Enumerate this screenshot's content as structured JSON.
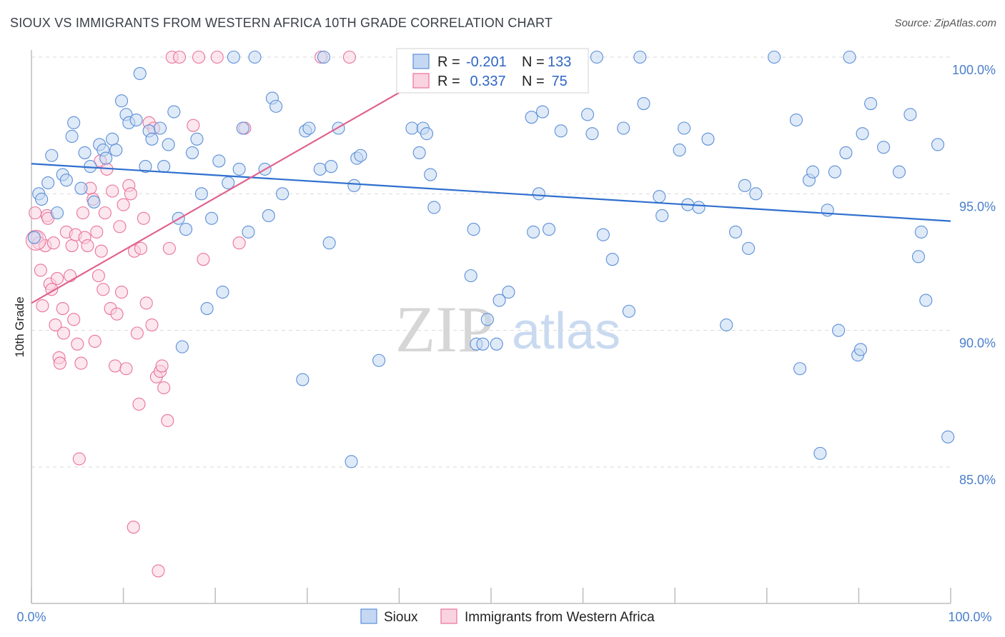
{
  "title": "SIOUX VS IMMIGRANTS FROM WESTERN AFRICA 10TH GRADE CORRELATION CHART",
  "source": "Source: ZipAtlas.com",
  "watermark": {
    "zip": "ZIP",
    "atlas": "atlas"
  },
  "legend_top": [
    {
      "r_label": "R = ",
      "r_value": "-0.201",
      "n_label": "N = ",
      "n_value": "133"
    },
    {
      "r_label": "R = ",
      "r_value": " 0.337",
      "n_label": "N = ",
      "n_value": " 75"
    }
  ],
  "colors": {
    "sioux": "#5b8fd8",
    "sioux_fill": "#c5d8f3",
    "wa": "#e9739a",
    "wa_fill": "#f9d3e0",
    "sioux_line": "#2f6fcf",
    "wa_line": "#e0628e",
    "grid": "#d9d9d9",
    "axis_text": "#4a7fcb"
  },
  "chart_data": {
    "type": "scatter",
    "xlabel": "",
    "ylabel": "10th Grade",
    "xlim": [
      0,
      100
    ],
    "ylim": [
      80.5,
      100.8
    ],
    "x_tick_labels": [
      "0.0%",
      "100.0%"
    ],
    "y_ticks": [
      85,
      90,
      95,
      100
    ],
    "y_tick_labels": [
      "85.0%",
      "90.0%",
      "95.0%",
      "100.0%"
    ],
    "legend": [
      "Sioux",
      "Immigrants from Western Africa"
    ],
    "series": [
      {
        "name": "Sioux",
        "R": -0.201,
        "N": 133,
        "trend": {
          "x": [
            0,
            100
          ],
          "y": [
            96.1,
            94.0
          ]
        },
        "points": [
          [
            0.3,
            93.4
          ],
          [
            0.8,
            95.0
          ],
          [
            1.1,
            94.8
          ],
          [
            1.8,
            95.4
          ],
          [
            2.2,
            96.4
          ],
          [
            2.8,
            94.3
          ],
          [
            3.4,
            95.7
          ],
          [
            3.8,
            95.5
          ],
          [
            4.4,
            97.1
          ],
          [
            4.6,
            97.6
          ],
          [
            5.4,
            95.2
          ],
          [
            5.8,
            96.5
          ],
          [
            6.4,
            96.0
          ],
          [
            6.8,
            94.7
          ],
          [
            7.4,
            96.8
          ],
          [
            7.8,
            96.6
          ],
          [
            8.1,
            96.3
          ],
          [
            8.8,
            97.0
          ],
          [
            9.2,
            96.6
          ],
          [
            9.8,
            98.4
          ],
          [
            10.3,
            97.9
          ],
          [
            10.6,
            97.6
          ],
          [
            11.4,
            97.7
          ],
          [
            11.8,
            99.4
          ],
          [
            12.4,
            96.0
          ],
          [
            12.8,
            97.3
          ],
          [
            13.1,
            97.0
          ],
          [
            14.0,
            97.4
          ],
          [
            14.4,
            96.0
          ],
          [
            14.9,
            96.8
          ],
          [
            15.5,
            98.0
          ],
          [
            16.0,
            94.1
          ],
          [
            16.4,
            89.4
          ],
          [
            16.8,
            93.7
          ],
          [
            17.5,
            96.5
          ],
          [
            18.0,
            97.0
          ],
          [
            18.5,
            95.0
          ],
          [
            19.1,
            90.8
          ],
          [
            19.6,
            94.1
          ],
          [
            20.4,
            96.2
          ],
          [
            20.8,
            91.4
          ],
          [
            21.4,
            95.4
          ],
          [
            22.0,
            100.0
          ],
          [
            22.6,
            95.9
          ],
          [
            23.0,
            97.4
          ],
          [
            23.6,
            93.6
          ],
          [
            24.3,
            100.0
          ],
          [
            25.4,
            95.9
          ],
          [
            25.8,
            94.2
          ],
          [
            26.2,
            98.5
          ],
          [
            26.6,
            98.2
          ],
          [
            27.3,
            95.0
          ],
          [
            29.5,
            88.2
          ],
          [
            29.8,
            97.3
          ],
          [
            30.2,
            97.4
          ],
          [
            31.4,
            95.9
          ],
          [
            31.8,
            100.0
          ],
          [
            32.4,
            93.2
          ],
          [
            32.6,
            96.0
          ],
          [
            33.4,
            97.4
          ],
          [
            34.8,
            85.2
          ],
          [
            35.1,
            95.3
          ],
          [
            35.4,
            96.3
          ],
          [
            35.8,
            96.4
          ],
          [
            37.8,
            88.9
          ],
          [
            41.4,
            97.4
          ],
          [
            41.8,
            100.0
          ],
          [
            42.2,
            96.5
          ],
          [
            42.6,
            97.4
          ],
          [
            43.0,
            97.2
          ],
          [
            43.4,
            95.7
          ],
          [
            43.8,
            94.5
          ],
          [
            44.3,
            100.0
          ],
          [
            45.2,
            100.0
          ],
          [
            46.2,
            100.0
          ],
          [
            47.8,
            92.0
          ],
          [
            48.1,
            93.7
          ],
          [
            48.4,
            89.5
          ],
          [
            49.1,
            89.5
          ],
          [
            49.6,
            90.4
          ],
          [
            50.6,
            89.5
          ],
          [
            50.9,
            91.1
          ],
          [
            51.9,
            91.4
          ],
          [
            54.4,
            97.8
          ],
          [
            54.6,
            93.6
          ],
          [
            55.2,
            95.0
          ],
          [
            55.6,
            98.0
          ],
          [
            56.3,
            93.7
          ],
          [
            57.6,
            97.3
          ],
          [
            59.4,
            100.0
          ],
          [
            60.5,
            97.9
          ],
          [
            61.0,
            97.2
          ],
          [
            61.5,
            100.0
          ],
          [
            62.2,
            93.5
          ],
          [
            63.2,
            92.6
          ],
          [
            64.4,
            97.4
          ],
          [
            65.0,
            90.7
          ],
          [
            66.2,
            100.0
          ],
          [
            66.6,
            98.3
          ],
          [
            68.3,
            94.9
          ],
          [
            68.6,
            94.2
          ],
          [
            70.5,
            96.6
          ],
          [
            71.0,
            97.4
          ],
          [
            71.4,
            94.6
          ],
          [
            72.6,
            94.5
          ],
          [
            73.6,
            97.0
          ],
          [
            75.6,
            90.2
          ],
          [
            76.6,
            93.6
          ],
          [
            77.6,
            95.3
          ],
          [
            78.0,
            93.0
          ],
          [
            78.8,
            95.0
          ],
          [
            80.8,
            100.0
          ],
          [
            83.2,
            97.7
          ],
          [
            83.6,
            88.6
          ],
          [
            84.6,
            95.5
          ],
          [
            85.0,
            95.8
          ],
          [
            85.8,
            85.5
          ],
          [
            86.6,
            94.4
          ],
          [
            87.4,
            95.8
          ],
          [
            87.8,
            90.0
          ],
          [
            88.6,
            96.5
          ],
          [
            89.0,
            100.0
          ],
          [
            89.9,
            89.1
          ],
          [
            90.2,
            89.3
          ],
          [
            90.4,
            97.2
          ],
          [
            91.3,
            98.3
          ],
          [
            92.7,
            96.7
          ],
          [
            94.4,
            95.8
          ],
          [
            95.6,
            97.9
          ],
          [
            96.5,
            92.7
          ],
          [
            96.8,
            93.6
          ],
          [
            97.3,
            91.1
          ],
          [
            98.6,
            96.8
          ],
          [
            99.7,
            86.1
          ]
        ]
      },
      {
        "name": "Immigrants from Western Africa",
        "R": 0.337,
        "N": 75,
        "trend": {
          "x": [
            0,
            40
          ],
          "y": [
            91.0,
            98.7
          ]
        },
        "points": [
          [
            0.4,
            94.3
          ],
          [
            0.6,
            93.4
          ],
          [
            0.8,
            93.2
          ],
          [
            1.0,
            92.2
          ],
          [
            1.2,
            90.9
          ],
          [
            1.5,
            93.1
          ],
          [
            1.7,
            94.2
          ],
          [
            1.8,
            94.1
          ],
          [
            2.0,
            91.7
          ],
          [
            2.2,
            91.5
          ],
          [
            2.4,
            93.2
          ],
          [
            2.6,
            90.2
          ],
          [
            2.8,
            91.9
          ],
          [
            3.0,
            89.0
          ],
          [
            3.1,
            88.8
          ],
          [
            3.4,
            90.8
          ],
          [
            3.5,
            89.9
          ],
          [
            3.8,
            93.6
          ],
          [
            4.2,
            92.0
          ],
          [
            4.4,
            93.1
          ],
          [
            4.6,
            90.4
          ],
          [
            4.8,
            93.5
          ],
          [
            5.0,
            89.5
          ],
          [
            5.2,
            85.3
          ],
          [
            5.4,
            88.8
          ],
          [
            5.6,
            94.3
          ],
          [
            5.8,
            93.4
          ],
          [
            6.1,
            93.1
          ],
          [
            6.4,
            95.2
          ],
          [
            6.7,
            94.8
          ],
          [
            6.9,
            89.6
          ],
          [
            7.1,
            93.6
          ],
          [
            7.3,
            92.0
          ],
          [
            7.5,
            96.2
          ],
          [
            7.6,
            92.9
          ],
          [
            7.8,
            91.5
          ],
          [
            8.0,
            94.3
          ],
          [
            8.2,
            95.9
          ],
          [
            8.6,
            90.8
          ],
          [
            8.8,
            95.1
          ],
          [
            9.1,
            88.7
          ],
          [
            9.3,
            90.6
          ],
          [
            9.6,
            93.8
          ],
          [
            9.8,
            91.4
          ],
          [
            10.0,
            94.6
          ],
          [
            10.3,
            88.6
          ],
          [
            10.6,
            95.3
          ],
          [
            10.8,
            95.0
          ],
          [
            11.1,
            82.8
          ],
          [
            11.2,
            92.9
          ],
          [
            11.5,
            89.9
          ],
          [
            11.7,
            87.3
          ],
          [
            11.9,
            93.0
          ],
          [
            12.2,
            94.1
          ],
          [
            12.5,
            91.0
          ],
          [
            12.8,
            97.6
          ],
          [
            13.1,
            90.2
          ],
          [
            13.3,
            97.4
          ],
          [
            13.6,
            88.3
          ],
          [
            13.8,
            81.2
          ],
          [
            14.0,
            88.5
          ],
          [
            14.2,
            88.7
          ],
          [
            14.4,
            87.9
          ],
          [
            14.8,
            86.7
          ],
          [
            15.0,
            93.0
          ],
          [
            15.3,
            100.0
          ],
          [
            16.1,
            100.0
          ],
          [
            17.6,
            97.5
          ],
          [
            18.2,
            100.0
          ],
          [
            18.7,
            92.6
          ],
          [
            20.2,
            100.0
          ],
          [
            22.6,
            93.2
          ],
          [
            23.2,
            97.4
          ],
          [
            31.5,
            100.0
          ],
          [
            34.6,
            100.0
          ]
        ]
      }
    ]
  }
}
